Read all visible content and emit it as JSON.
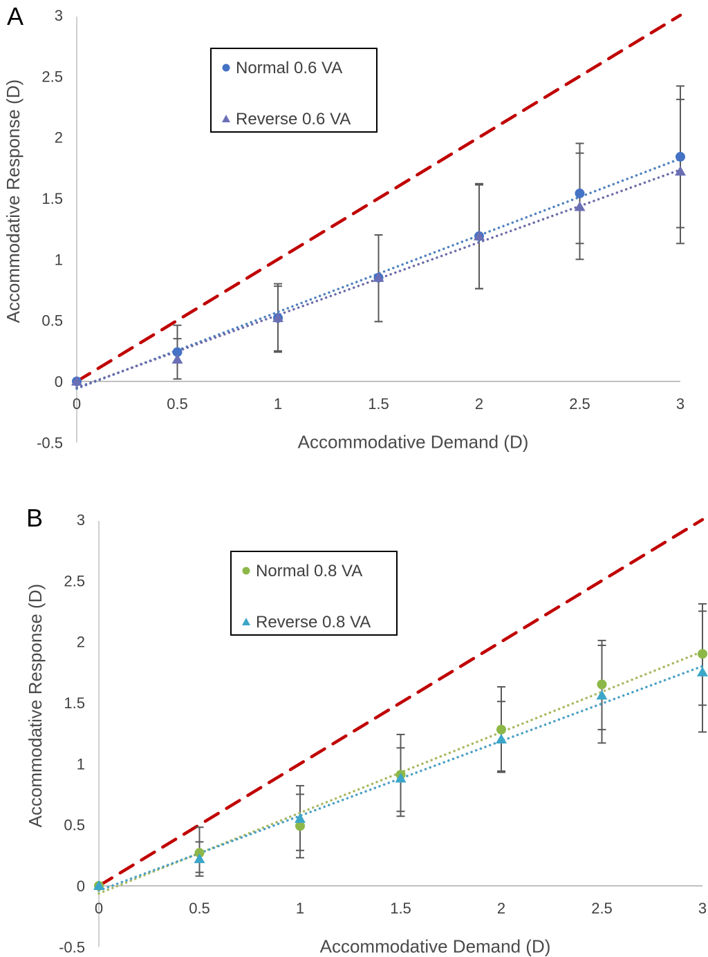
{
  "chart_data": [
    {
      "type": "scatter",
      "panel_label": "A",
      "xlabel": "Accommodative Demand (D)",
      "ylabel": "Accommodative Response (D)",
      "xlim": [
        0,
        3
      ],
      "ylim": [
        -0.5,
        3
      ],
      "x_ticks": [
        "0",
        "0.5",
        "1",
        "1.5",
        "2",
        "2.5",
        "3"
      ],
      "y_ticks": [
        "-0.5",
        "0",
        "0.5",
        "1",
        "1.5",
        "2",
        "2.5",
        "3"
      ],
      "grid": false,
      "legend_position": "top-left-inset",
      "x": [
        0,
        0.5,
        1,
        1.5,
        2,
        2.5,
        3
      ],
      "ideal_line": {
        "name": "1:1 line",
        "style": "dashed",
        "color": "#c00000",
        "x": [
          0,
          3
        ],
        "y": [
          0,
          3
        ]
      },
      "series": [
        {
          "name": "Normal 0.6 VA",
          "marker": "circle",
          "color": "#4472c4",
          "trend_color": "#4f81bd",
          "values": [
            0,
            0.24,
            0.52,
            0.85,
            1.19,
            1.54,
            1.84
          ],
          "error_upper": [
            0,
            0.35,
            0.78,
            1.2,
            1.61,
            1.87,
            2.31
          ],
          "error_lower": [
            0,
            0.02,
            0.25,
            0.49,
            0.76,
            1.13,
            1.26
          ],
          "trendline": "linear"
        },
        {
          "name": "Reverse 0.6 VA",
          "marker": "triangle",
          "color": "#6a6fb5",
          "trend_color": "#6b6aa8",
          "values": [
            0,
            0.18,
            0.52,
            0.85,
            1.19,
            1.43,
            1.72
          ],
          "error_upper": [
            0,
            0.46,
            0.8,
            1.2,
            1.62,
            1.95,
            2.42
          ],
          "error_lower": [
            0,
            0.02,
            0.24,
            0.49,
            0.76,
            1.0,
            1.13
          ],
          "trendline": "linear"
        }
      ]
    },
    {
      "type": "scatter",
      "panel_label": "B",
      "xlabel": "Accommodative Demand (D)",
      "ylabel": "Accommodative Response (D)",
      "xlim": [
        0,
        3
      ],
      "ylim": [
        -0.5,
        3
      ],
      "x_ticks": [
        "0",
        "0.5",
        "1",
        "1.5",
        "2",
        "2.5",
        "3"
      ],
      "y_ticks": [
        "-0.5",
        "0",
        "0.5",
        "1",
        "1.5",
        "2",
        "2.5",
        "3"
      ],
      "grid": false,
      "legend_position": "top-left-inset",
      "x": [
        0,
        0.5,
        1,
        1.5,
        2,
        2.5,
        3
      ],
      "ideal_line": {
        "name": "1:1 line",
        "style": "dashed",
        "color": "#c00000",
        "x": [
          0,
          3
        ],
        "y": [
          0,
          3
        ]
      },
      "series": [
        {
          "name": "Normal 0.8 VA",
          "marker": "circle",
          "color": "#8db849",
          "trend_color": "#a8b860",
          "values": [
            0,
            0.27,
            0.49,
            0.91,
            1.28,
            1.65,
            1.9
          ],
          "error_upper": [
            0,
            0.36,
            0.75,
            1.13,
            1.51,
            1.97,
            2.25
          ],
          "error_lower": [
            0,
            0.11,
            0.29,
            0.61,
            0.94,
            1.28,
            1.48
          ],
          "trendline": "linear"
        },
        {
          "name": "Reverse 0.8 VA",
          "marker": "triangle",
          "color": "#3ca6c8",
          "trend_color": "#4a9fc4",
          "values": [
            0,
            0.22,
            0.55,
            0.88,
            1.2,
            1.56,
            1.75
          ],
          "error_upper": [
            0,
            0.48,
            0.82,
            1.24,
            1.63,
            2.01,
            2.31
          ],
          "error_lower": [
            0,
            0.08,
            0.23,
            0.57,
            0.93,
            1.17,
            1.26
          ],
          "trendline": "linear"
        }
      ]
    }
  ]
}
